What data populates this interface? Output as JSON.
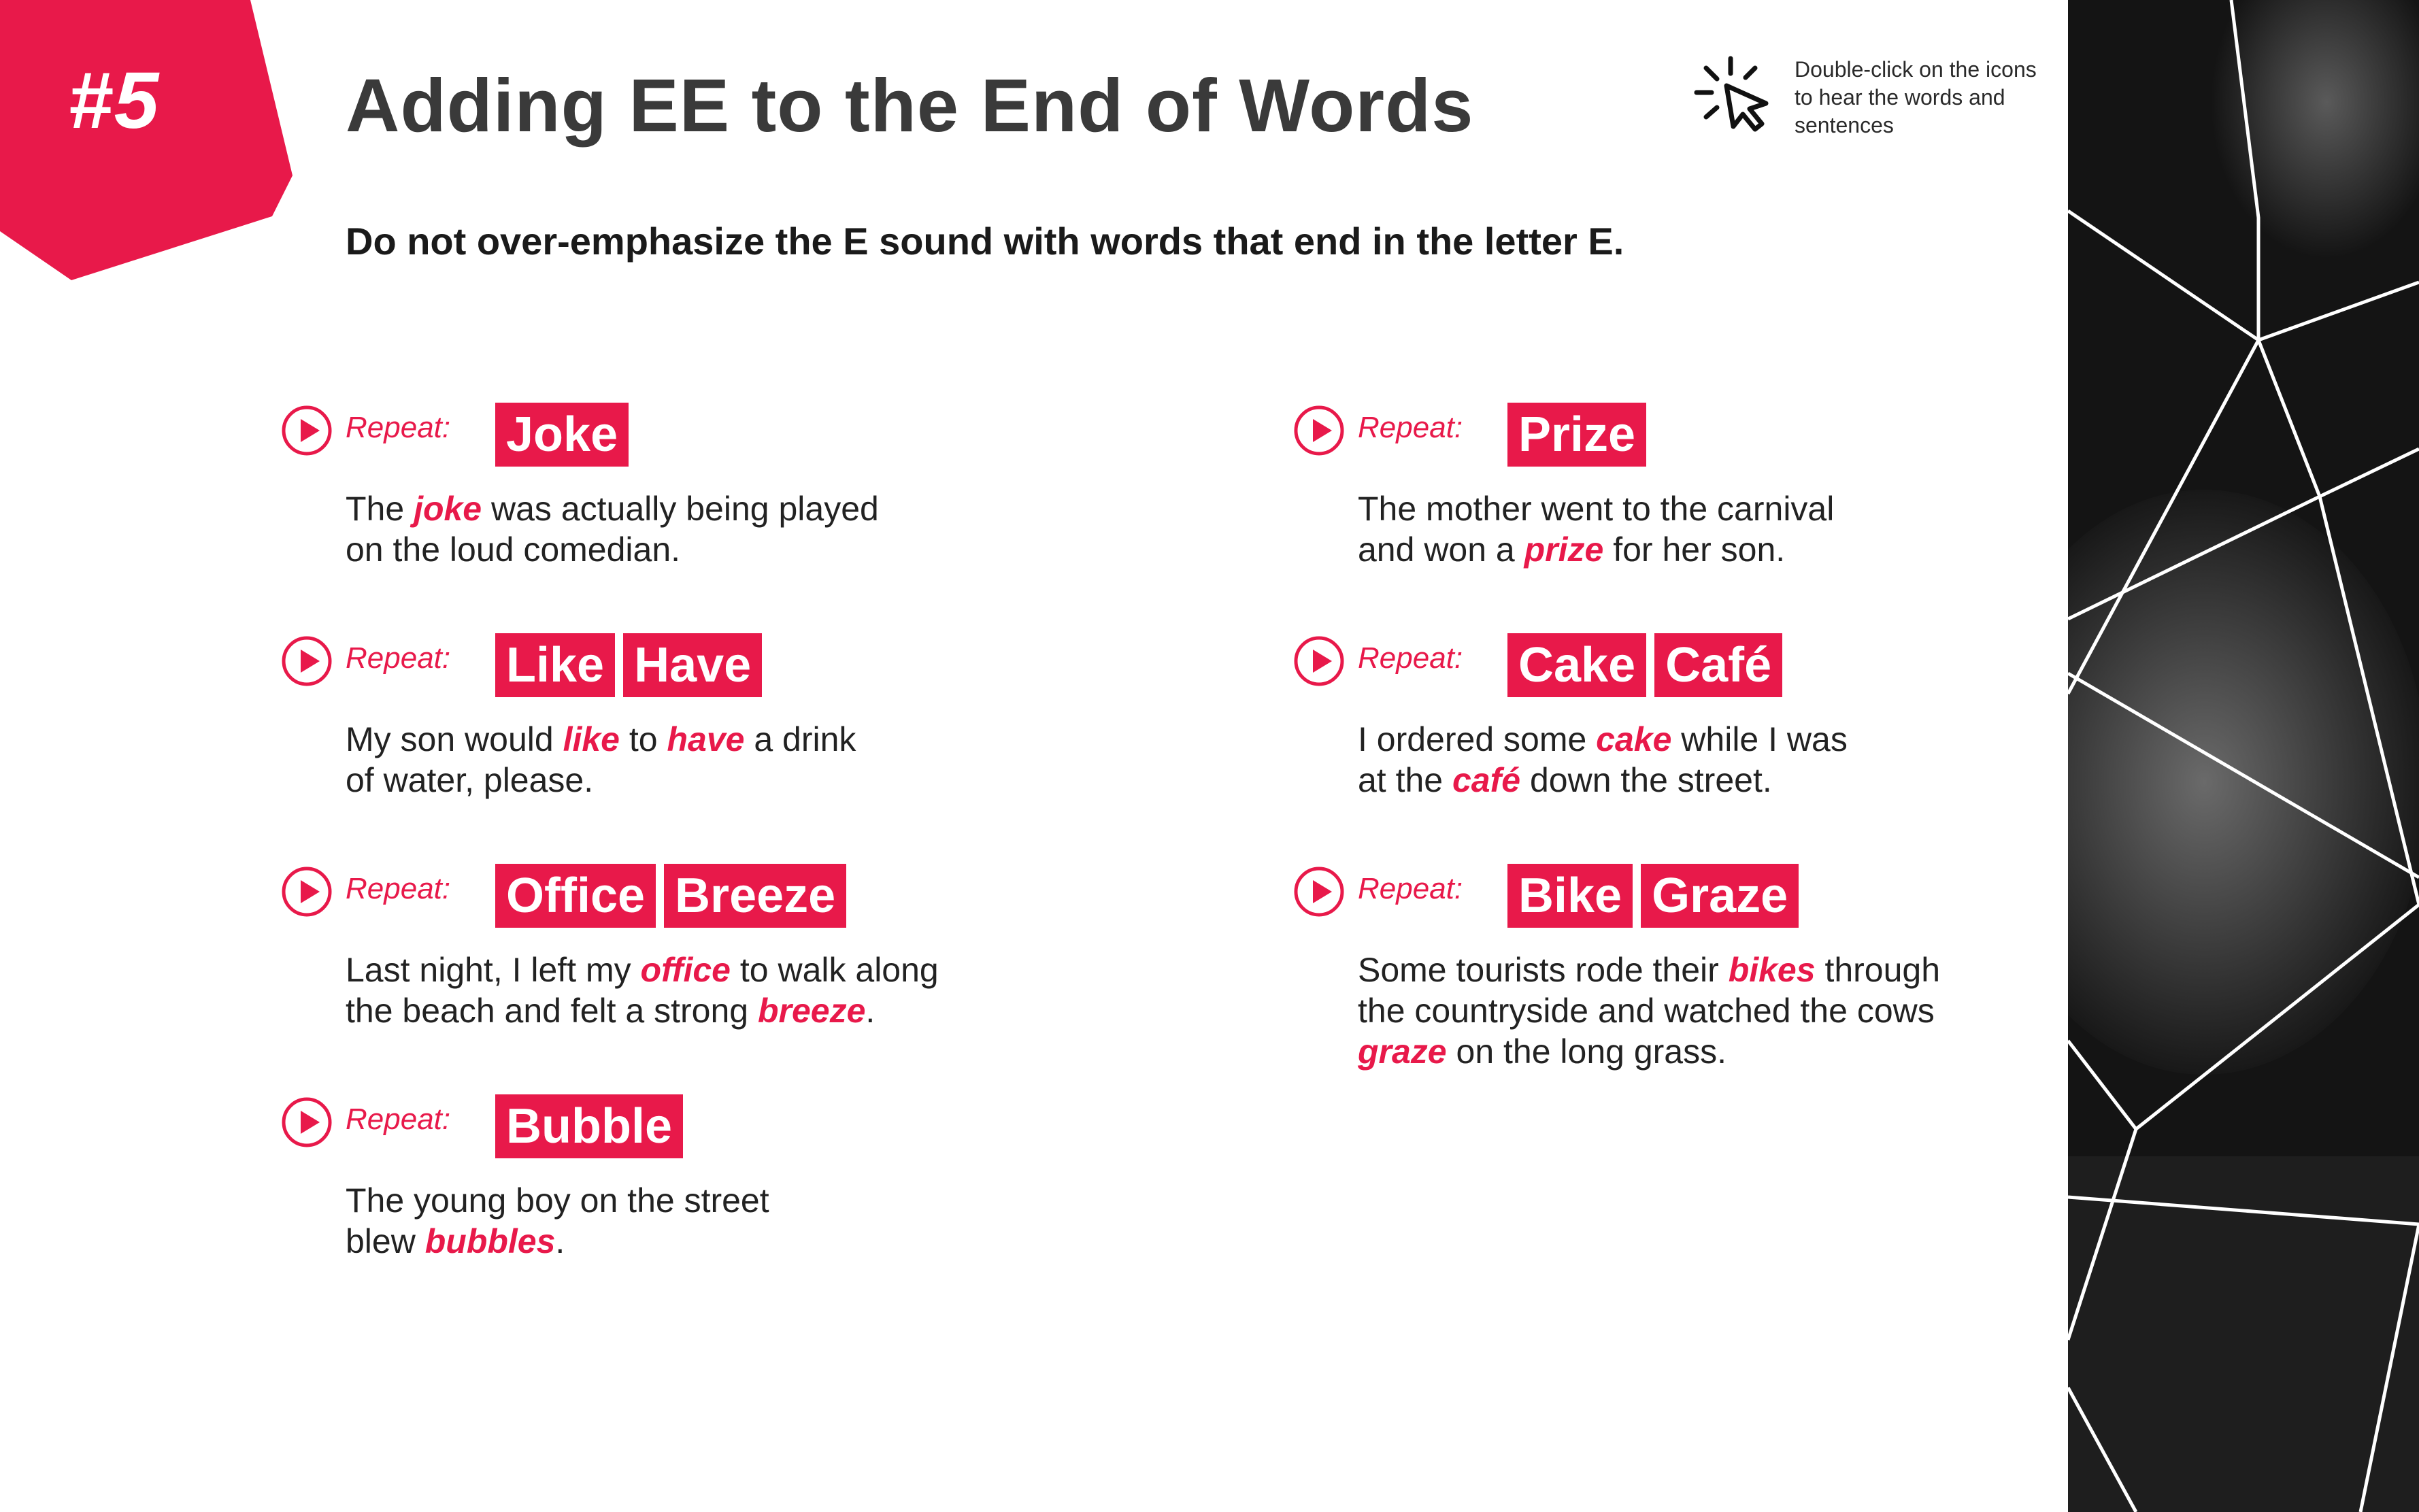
{
  "badge": {
    "number": "#5"
  },
  "title": "Adding EE to the End of Words",
  "subtitle": "Do not over-emphasize the E sound with words that end in the letter E.",
  "hint": {
    "icon": "cursor-click-icon",
    "text": "Double-click on the icons to hear the words and sentences"
  },
  "colors": {
    "accent": "#e8194a",
    "title": "#3a3a3a",
    "text": "#222222"
  },
  "left_column": [
    {
      "label": "Repeat:",
      "words": [
        "Joke"
      ],
      "sentence": [
        [
          "The ",
          false
        ],
        [
          "joke",
          true
        ],
        [
          " was actually being played",
          false
        ],
        [
          "\n",
          false
        ],
        [
          "on the loud comedian.",
          false
        ]
      ]
    },
    {
      "label": "Repeat:",
      "words": [
        "Like",
        "Have"
      ],
      "sentence": [
        [
          "My son would ",
          false
        ],
        [
          "like",
          true
        ],
        [
          " to ",
          false
        ],
        [
          "have",
          true
        ],
        [
          " a drink",
          false
        ],
        [
          "\n",
          false
        ],
        [
          "of water, please.",
          false
        ]
      ]
    },
    {
      "label": "Repeat:",
      "words": [
        "Office",
        "Breeze"
      ],
      "sentence": [
        [
          "Last night, I left my ",
          false
        ],
        [
          "office",
          true
        ],
        [
          " to walk along",
          false
        ],
        [
          "\n",
          false
        ],
        [
          "the beach and felt a strong ",
          false
        ],
        [
          "breeze",
          true
        ],
        [
          ".",
          false
        ]
      ]
    },
    {
      "label": "Repeat:",
      "words": [
        "Bubble"
      ],
      "sentence": [
        [
          "The young boy on the street",
          false
        ],
        [
          "\n",
          false
        ],
        [
          "blew ",
          false
        ],
        [
          "bubbles",
          true
        ],
        [
          ".",
          false
        ]
      ]
    }
  ],
  "right_column": [
    {
      "label": "Repeat:",
      "words": [
        "Prize"
      ],
      "sentence": [
        [
          "The mother went to the carnival",
          false
        ],
        [
          "\n",
          false
        ],
        [
          "and won a ",
          false
        ],
        [
          "prize",
          true
        ],
        [
          " for her son.",
          false
        ]
      ]
    },
    {
      "label": "Repeat:",
      "words": [
        "Cake",
        "Café"
      ],
      "sentence": [
        [
          "I ordered some ",
          false
        ],
        [
          "cake",
          true
        ],
        [
          " while I was",
          false
        ],
        [
          "\n",
          false
        ],
        [
          "at the ",
          false
        ],
        [
          "café",
          true
        ],
        [
          " down the street.",
          false
        ]
      ]
    },
    {
      "label": "Repeat:",
      "words": [
        "Bike",
        "Graze"
      ],
      "sentence": [
        [
          "Some tourists rode their ",
          false
        ],
        [
          "bikes",
          true
        ],
        [
          " through",
          false
        ],
        [
          "\n",
          false
        ],
        [
          "the countryside and watched the cows",
          false
        ],
        [
          "\n",
          false
        ],
        [
          "graze",
          true
        ],
        [
          " on the long grass.",
          false
        ]
      ]
    }
  ]
}
